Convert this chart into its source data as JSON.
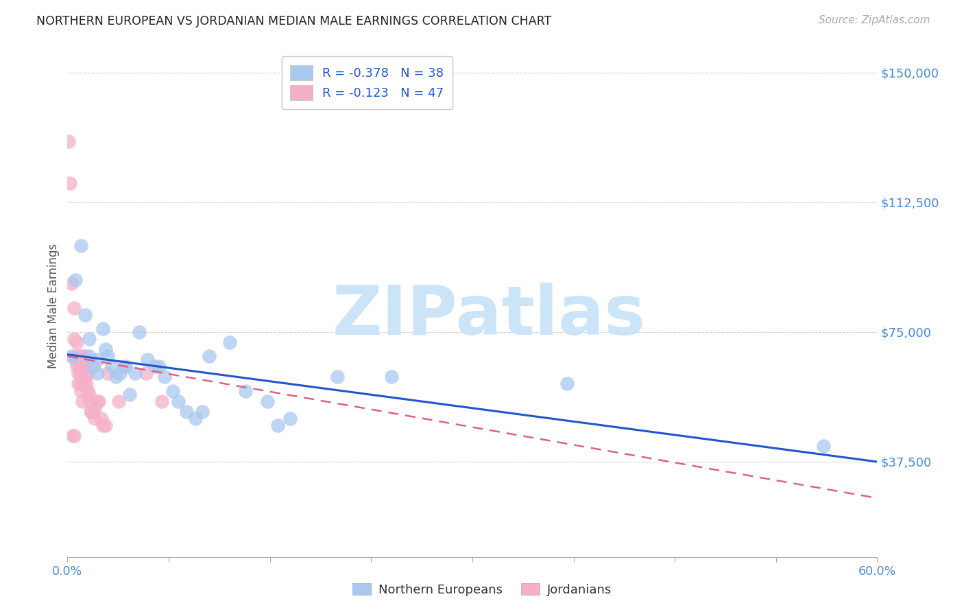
{
  "title": "NORTHERN EUROPEAN VS JORDANIAN MEDIAN MALE EARNINGS CORRELATION CHART",
  "source": "Source: ZipAtlas.com",
  "ylabel": "Median Male Earnings",
  "xmin": 0.0,
  "xmax": 0.6,
  "ymin": 10000,
  "ymax": 155000,
  "yticks": [
    37500,
    75000,
    112500,
    150000
  ],
  "ytick_labels": [
    "$37,500",
    "$75,000",
    "$112,500",
    "$150,000"
  ],
  "xticks": [
    0.0,
    0.075,
    0.15,
    0.225,
    0.3,
    0.375,
    0.45,
    0.525,
    0.6
  ],
  "xtick_labels_show": [
    "0.0%",
    "",
    "",
    "",
    "",
    "",
    "",
    "",
    "60.0%"
  ],
  "legend_entry_blue": "R = -0.378   N = 38",
  "legend_entry_pink": "R = -0.123   N = 47",
  "legend_bottom": [
    "Northern Europeans",
    "Jordanians"
  ],
  "blue_scatter_color": "#a8c8f0",
  "pink_scatter_color": "#f5b0c8",
  "blue_line_color": "#2255cc",
  "pink_line_color": "#e06080",
  "watermark_text": "ZIPatlas",
  "watermark_color": "#cce4f8",
  "northern_europeans": [
    [
      0.003,
      68000
    ],
    [
      0.006,
      90000
    ],
    [
      0.01,
      100000
    ],
    [
      0.013,
      80000
    ],
    [
      0.016,
      73000
    ],
    [
      0.016,
      68000
    ],
    [
      0.019,
      65000
    ],
    [
      0.022,
      67000
    ],
    [
      0.022,
      63000
    ],
    [
      0.026,
      76000
    ],
    [
      0.028,
      70000
    ],
    [
      0.03,
      68000
    ],
    [
      0.033,
      65000
    ],
    [
      0.036,
      62000
    ],
    [
      0.039,
      63000
    ],
    [
      0.043,
      65000
    ],
    [
      0.046,
      57000
    ],
    [
      0.05,
      63000
    ],
    [
      0.053,
      75000
    ],
    [
      0.059,
      67000
    ],
    [
      0.065,
      65000
    ],
    [
      0.068,
      65000
    ],
    [
      0.072,
      62000
    ],
    [
      0.078,
      58000
    ],
    [
      0.082,
      55000
    ],
    [
      0.088,
      52000
    ],
    [
      0.095,
      50000
    ],
    [
      0.1,
      52000
    ],
    [
      0.105,
      68000
    ],
    [
      0.12,
      72000
    ],
    [
      0.132,
      58000
    ],
    [
      0.148,
      55000
    ],
    [
      0.156,
      48000
    ],
    [
      0.165,
      50000
    ],
    [
      0.2,
      62000
    ],
    [
      0.24,
      62000
    ],
    [
      0.37,
      60000
    ],
    [
      0.56,
      42000
    ]
  ],
  "jordanians": [
    [
      0.001,
      130000
    ],
    [
      0.002,
      118000
    ],
    [
      0.003,
      89000
    ],
    [
      0.005,
      82000
    ],
    [
      0.005,
      73000
    ],
    [
      0.006,
      68000
    ],
    [
      0.006,
      67000
    ],
    [
      0.007,
      72000
    ],
    [
      0.007,
      65000
    ],
    [
      0.008,
      63000
    ],
    [
      0.008,
      60000
    ],
    [
      0.009,
      68000
    ],
    [
      0.009,
      65000
    ],
    [
      0.01,
      63000
    ],
    [
      0.01,
      60000
    ],
    [
      0.01,
      58000
    ],
    [
      0.01,
      62000
    ],
    [
      0.011,
      55000
    ],
    [
      0.011,
      68000
    ],
    [
      0.011,
      62000
    ],
    [
      0.012,
      65000
    ],
    [
      0.012,
      60000
    ],
    [
      0.012,
      65000
    ],
    [
      0.013,
      62000
    ],
    [
      0.013,
      68000
    ],
    [
      0.014,
      65000
    ],
    [
      0.014,
      60000
    ],
    [
      0.015,
      58000
    ],
    [
      0.015,
      63000
    ],
    [
      0.016,
      57000
    ],
    [
      0.016,
      55000
    ],
    [
      0.017,
      52000
    ],
    [
      0.018,
      52000
    ],
    [
      0.02,
      50000
    ],
    [
      0.02,
      53000
    ],
    [
      0.022,
      55000
    ],
    [
      0.023,
      55000
    ],
    [
      0.025,
      50000
    ],
    [
      0.026,
      48000
    ],
    [
      0.028,
      48000
    ],
    [
      0.03,
      63000
    ],
    [
      0.038,
      55000
    ],
    [
      0.042,
      65000
    ],
    [
      0.058,
      63000
    ],
    [
      0.07,
      55000
    ],
    [
      0.004,
      45000
    ],
    [
      0.005,
      45000
    ]
  ],
  "blue_line_x0": 0.0,
  "blue_line_y0": 68500,
  "blue_line_x1": 0.6,
  "blue_line_y1": 37500,
  "pink_line_x0": 0.0,
  "pink_line_y0": 68000,
  "pink_line_x1": 0.6,
  "pink_line_y1": 27000
}
